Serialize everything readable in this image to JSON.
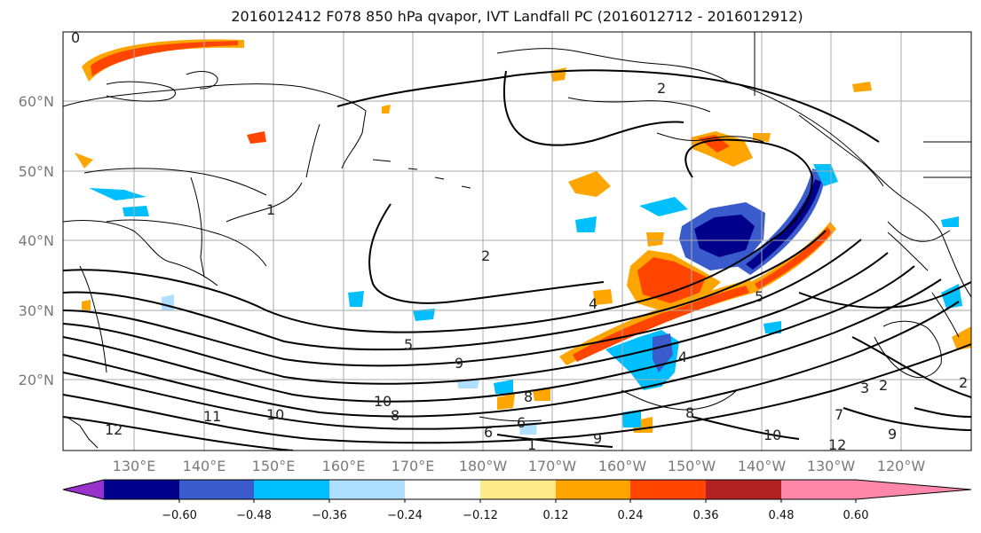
{
  "title": "2016012412 F078 850 hPa qvapor, IVT Landfall PC (2016012712 - 2016012912)",
  "lat_labels": [
    "60°N",
    "50°N",
    "40°N",
    "30°N",
    "20°N"
  ],
  "lon_labels": [
    "130°E",
    "140°E",
    "150°E",
    "160°E",
    "170°E",
    "180°W",
    "170°W",
    "160°W",
    "150°W",
    "140°W",
    "130°W",
    "120°W"
  ],
  "colorbar": {
    "colors": [
      "#9932cc",
      "#00008b",
      "#3a5bcc",
      "#00bfff",
      "#b0e0ff",
      "#ffffff",
      "#ffeb8a",
      "#ffa500",
      "#ff4500",
      "#b22222",
      "#ff88aa"
    ],
    "tick_labels": [
      "−0.60",
      "−0.48",
      "−0.36",
      "−0.24",
      "−0.12",
      "0.12",
      "0.24",
      "0.36",
      "0.48",
      "0.60"
    ]
  },
  "contour_labels": [
    "0",
    "1",
    "1",
    "2",
    "2",
    "2",
    "2",
    "3",
    "4",
    "4",
    "5",
    "5",
    "6",
    "6",
    "7",
    "8",
    "8",
    "8",
    "9",
    "9",
    "9",
    "10",
    "10",
    "10",
    "11",
    "12",
    "12"
  ]
}
